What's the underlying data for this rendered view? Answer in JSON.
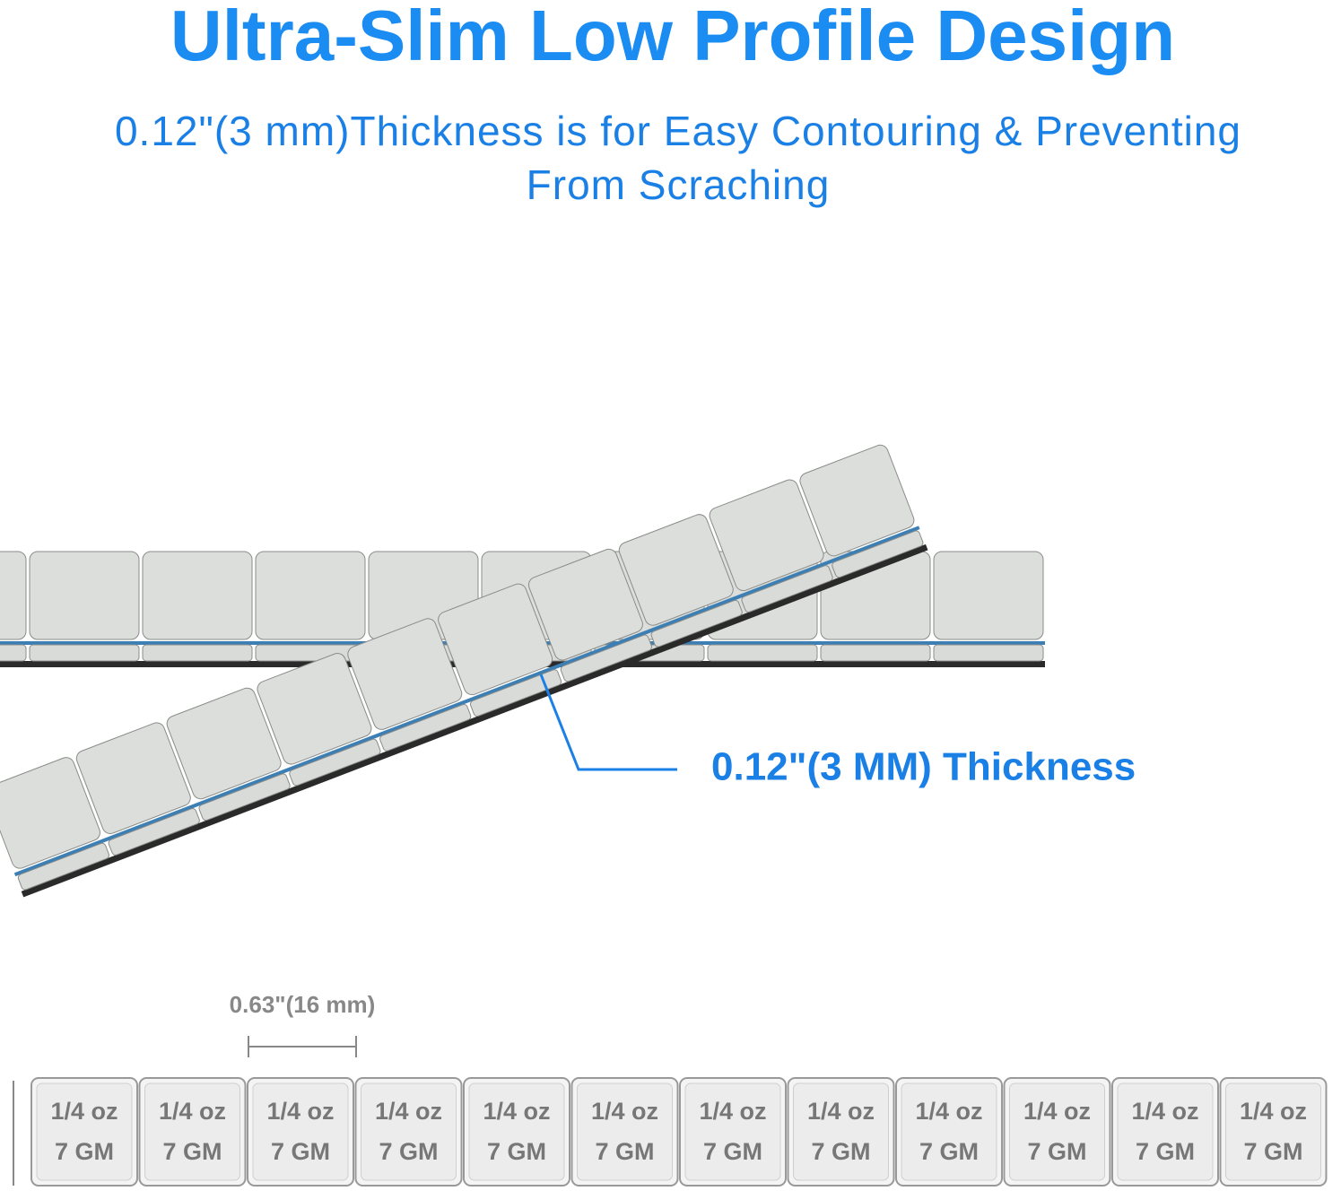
{
  "header": {
    "title": "Ultra-Slim Low Profile Design",
    "subtitle": [
      "0.12\"(3 mm)Thickness is for Easy Contouring & Preventing",
      "From Scraching"
    ]
  },
  "callout": "0.12\"(3 MM) Thickness",
  "dimension": "0.63\"(16 mm)",
  "tiles": [
    {
      "weight": "1/4 oz",
      "grams": "7 GM"
    },
    {
      "weight": "1/4 oz",
      "grams": "7 GM"
    },
    {
      "weight": "1/4 oz",
      "grams": "7 GM"
    },
    {
      "weight": "1/4 oz",
      "grams": "7 GM"
    },
    {
      "weight": "1/4 oz",
      "grams": "7 GM"
    },
    {
      "weight": "1/4 oz",
      "grams": "7 GM"
    },
    {
      "weight": "1/4 oz",
      "grams": "7 GM"
    },
    {
      "weight": "1/4 oz",
      "grams": "7 GM"
    },
    {
      "weight": "1/4 oz",
      "grams": "7 GM"
    },
    {
      "weight": "1/4 oz",
      "grams": "7 GM"
    },
    {
      "weight": "1/4 oz",
      "grams": "7 GM"
    },
    {
      "weight": "1/4 oz",
      "grams": "7 GM"
    }
  ]
}
